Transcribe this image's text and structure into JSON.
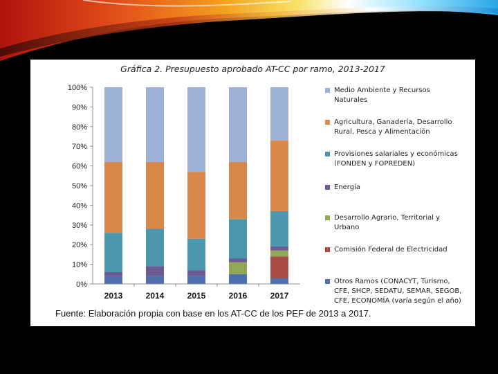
{
  "chart_data": {
    "type": "bar",
    "stacked": true,
    "title": "Gráfica 2. Presupuesto aprobado AT-CC por ramo, 2013-2017",
    "source": "Fuente: Elaboración propia con base en los AT-CC de los PEF de 2013 a 2017.",
    "categories": [
      "2013",
      "2014",
      "2015",
      "2016",
      "2017"
    ],
    "y_ticks": [
      "0%",
      "10%",
      "20%",
      "30%",
      "40%",
      "50%",
      "60%",
      "70%",
      "80%",
      "90%",
      "100%"
    ],
    "ylim": [
      0,
      100
    ],
    "grid": false,
    "legend_position": "right",
    "series": [
      {
        "name": "Otros Ramos (CONACYT, Turismo, CFE, SHCP, SEDATU, SEMAR, SEGOB, CFE, ECONOMÍA (varía según el año)",
        "color": "#4F6FAE",
        "values": [
          4,
          4,
          4,
          5,
          3
        ]
      },
      {
        "name": "Comisión Federal de Electricidad",
        "color": "#A84B45",
        "values": [
          0,
          0,
          0,
          0,
          11
        ]
      },
      {
        "name": "Desarrollo Agrario, Territorial y Urbano",
        "color": "#93A759",
        "values": [
          0,
          0,
          0,
          6,
          3
        ]
      },
      {
        "name": "Energía",
        "color": "#6E5A92",
        "values": [
          2,
          5,
          3,
          2,
          2
        ]
      },
      {
        "name": "Provisiones salariales y económicas (FONDEN y FOPREDEN)",
        "color": "#4C97AE",
        "values": [
          20,
          19,
          16,
          20,
          18
        ]
      },
      {
        "name": "Agricultura, Ganadería, Desarrollo Rural, Pesca y Alimentación",
        "color": "#D8884A",
        "values": [
          36,
          34,
          34,
          29,
          36
        ]
      },
      {
        "name": "Medio Ambiente y Recursos Naturales",
        "color": "#9EB0D6",
        "values": [
          38,
          38,
          43,
          38,
          27
        ]
      }
    ]
  }
}
